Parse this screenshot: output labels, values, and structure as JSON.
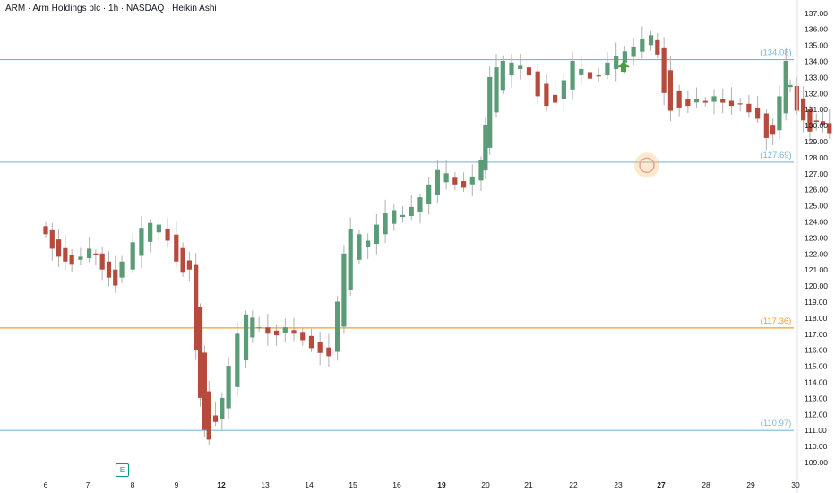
{
  "header": {
    "title": "ARM · Arm Holdings plc · 1h · NASDAQ · Heikin Ashi"
  },
  "earnings_marker": {
    "label": "E"
  },
  "colors": {
    "up": "#5b9b77",
    "down": "#b54a3d",
    "wick": "#b0b0b0",
    "level_blue": "#7ab7de",
    "level_orange": "#f0a020",
    "arrow": "#43a047",
    "axis_text": "#131722"
  },
  "chart_data": {
    "type": "candlestick",
    "title": "ARM · Arm Holdings plc · 1h · NASDAQ · Heikin Ashi",
    "x_ticks": [
      "6",
      "7",
      "8",
      "9",
      "12",
      "13",
      "14",
      "15",
      "16",
      "19",
      "20",
      "21",
      "22",
      "23",
      "27",
      "28",
      "29",
      "30"
    ],
    "y_ticks": [
      "109.00",
      "110.00",
      "111.00",
      "112.00",
      "113.00",
      "114.00",
      "115.00",
      "116.00",
      "117.00",
      "118.00",
      "119.00",
      "120.00",
      "121.00",
      "122.00",
      "123.00",
      "124.00",
      "125.00",
      "126.00",
      "127.00",
      "128.00",
      "129.00",
      "130.00",
      "131.00",
      "132.00",
      "133.00",
      "134.00",
      "135.00",
      "136.00",
      "137.00"
    ],
    "ylim": [
      108.2,
      137.6
    ],
    "levels": [
      {
        "label": "(134.08)",
        "value": 134.08,
        "color": "blue"
      },
      {
        "label": "(127.69)",
        "value": 127.69,
        "color": "blue"
      },
      {
        "label": "(117.36)",
        "value": 117.36,
        "color": "orange"
      },
      {
        "label": "(110.97)",
        "value": 110.97,
        "color": "blue"
      }
    ],
    "arrow": {
      "x_day": 22.2,
      "y": 133.6,
      "direction": "up"
    },
    "highlight_circle": {
      "x_day": 22.65,
      "y": 127.5
    },
    "series": [
      {
        "name": "",
        "points": [
          [
            6.0,
            123.2
          ],
          [
            6.15,
            122.3
          ],
          [
            6.3,
            121.8
          ],
          [
            6.45,
            121.5
          ],
          [
            6.6,
            121.3
          ],
          [
            6.8,
            121.8
          ],
          [
            7.0,
            122.3
          ],
          [
            7.15,
            122.0
          ],
          [
            7.3,
            121.0
          ],
          [
            7.45,
            120.5
          ],
          [
            7.6,
            120.0
          ],
          [
            7.75,
            121.5
          ],
          [
            8.0,
            122.7
          ],
          [
            8.2,
            123.6
          ],
          [
            8.4,
            123.9
          ],
          [
            8.6,
            123.8
          ],
          [
            8.8,
            122.8
          ],
          [
            9.0,
            121.5
          ],
          [
            9.15,
            120.8
          ],
          [
            9.3,
            121.0
          ],
          [
            9.45,
            116.0
          ],
          [
            9.55,
            113.0
          ],
          [
            9.65,
            111.0
          ],
          [
            9.75,
            110.4
          ],
          [
            9.9,
            111.5
          ],
          [
            10.05,
            113.0
          ],
          [
            10.2,
            115.0
          ],
          [
            10.4,
            117.0
          ],
          [
            10.6,
            118.2
          ],
          [
            10.75,
            118.0
          ],
          [
            10.9,
            117.4
          ],
          [
            11.1,
            117.0
          ],
          [
            11.3,
            116.9
          ],
          [
            11.5,
            117.4
          ],
          [
            11.7,
            117.0
          ],
          [
            11.9,
            116.6
          ],
          [
            12.1,
            116.1
          ],
          [
            12.3,
            115.8
          ],
          [
            12.5,
            115.6
          ],
          [
            12.7,
            119.0
          ],
          [
            12.85,
            122.0
          ],
          [
            13.0,
            123.5
          ],
          [
            13.2,
            123.2
          ],
          [
            13.4,
            122.8
          ],
          [
            13.6,
            123.8
          ],
          [
            13.8,
            124.5
          ],
          [
            14.0,
            124.7
          ],
          [
            14.2,
            124.4
          ],
          [
            14.4,
            124.9
          ],
          [
            14.6,
            125.5
          ],
          [
            14.8,
            126.3
          ],
          [
            15.0,
            127.2
          ],
          [
            15.2,
            127.0
          ],
          [
            15.4,
            126.3
          ],
          [
            15.6,
            126.1
          ],
          [
            15.8,
            126.8
          ],
          [
            16.0,
            127.8
          ],
          [
            16.1,
            130.0
          ],
          [
            16.2,
            133.0
          ],
          [
            16.35,
            133.6
          ],
          [
            16.5,
            134.0
          ],
          [
            16.7,
            133.9
          ],
          [
            16.9,
            133.7
          ],
          [
            17.1,
            133.1
          ],
          [
            17.3,
            131.8
          ],
          [
            17.5,
            131.2
          ],
          [
            17.7,
            131.4
          ],
          [
            17.9,
            132.8
          ],
          [
            18.1,
            134.0
          ],
          [
            18.3,
            133.5
          ],
          [
            18.5,
            132.9
          ],
          [
            18.7,
            133.1
          ],
          [
            18.9,
            133.9
          ],
          [
            19.1,
            134.3
          ],
          [
            19.3,
            134.6
          ],
          [
            19.5,
            134.9
          ],
          [
            19.7,
            135.4
          ],
          [
            19.9,
            135.6
          ],
          [
            20.05,
            134.4
          ],
          [
            20.2,
            132.0
          ],
          [
            20.35,
            130.9
          ],
          [
            20.55,
            131.1
          ],
          [
            20.75,
            131.2
          ],
          [
            20.95,
            131.6
          ],
          [
            21.15,
            131.4
          ],
          [
            21.35,
            131.8
          ],
          [
            21.55,
            131.4
          ],
          [
            21.75,
            131.2
          ],
          [
            21.95,
            131.3
          ],
          [
            22.15,
            130.8
          ],
          [
            22.35,
            130.4
          ],
          [
            22.55,
            129.2
          ],
          [
            22.7,
            129.4
          ],
          [
            22.85,
            131.8
          ],
          [
            23.0,
            134.0
          ],
          [
            23.1,
            132.5
          ],
          [
            23.25,
            130.9
          ],
          [
            23.4,
            130.3
          ],
          [
            23.55,
            129.6
          ],
          [
            23.7,
            130.2
          ],
          [
            23.85,
            130.0
          ],
          [
            24.0,
            129.5
          ],
          [
            24.2,
            129.4
          ],
          [
            24.4,
            129.2
          ],
          [
            24.6,
            129.0
          ],
          [
            24.8,
            127.6
          ],
          [
            24.95,
            126.0
          ],
          [
            25.1,
            125.6
          ],
          [
            25.25,
            126.2
          ],
          [
            25.4,
            126.7
          ],
          [
            25.55,
            127.0
          ],
          [
            25.7,
            127.1
          ],
          [
            25.85,
            129.0
          ],
          [
            26.0,
            130.0
          ],
          [
            26.15,
            132.0
          ],
          [
            26.3,
            134.0
          ],
          [
            26.45,
            135.5
          ],
          [
            26.6,
            135.3
          ],
          [
            26.75,
            134.6
          ],
          [
            26.9,
            134.2
          ],
          [
            27.05,
            134.3
          ],
          [
            27.2,
            134.4
          ],
          [
            27.35,
            134.5
          ],
          [
            27.5,
            134.7
          ],
          [
            27.65,
            135.0
          ]
        ]
      }
    ]
  }
}
